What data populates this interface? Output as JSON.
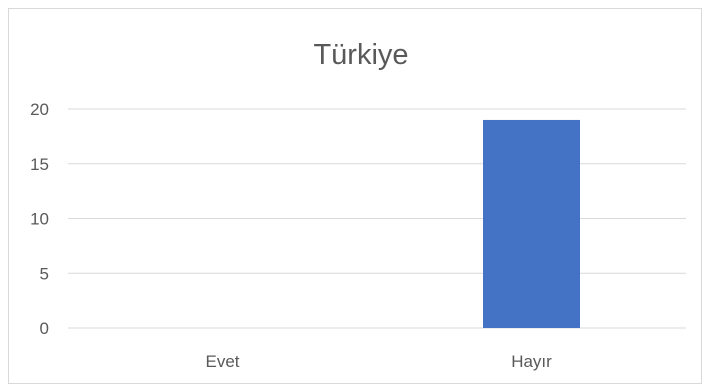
{
  "chart_data": {
    "type": "bar",
    "title": "Türkiye",
    "xlabel": "",
    "ylabel": "",
    "categories": [
      "Evet",
      "Hayır"
    ],
    "values": [
      0,
      19
    ],
    "ylim": [
      0,
      20
    ],
    "yticks": [
      "0",
      "5",
      "10",
      "15",
      "20"
    ],
    "grid": true,
    "legend": "none",
    "colors": {
      "bar": "#4472c4",
      "gridline": "#d9d9d9",
      "text": "#595959"
    }
  }
}
